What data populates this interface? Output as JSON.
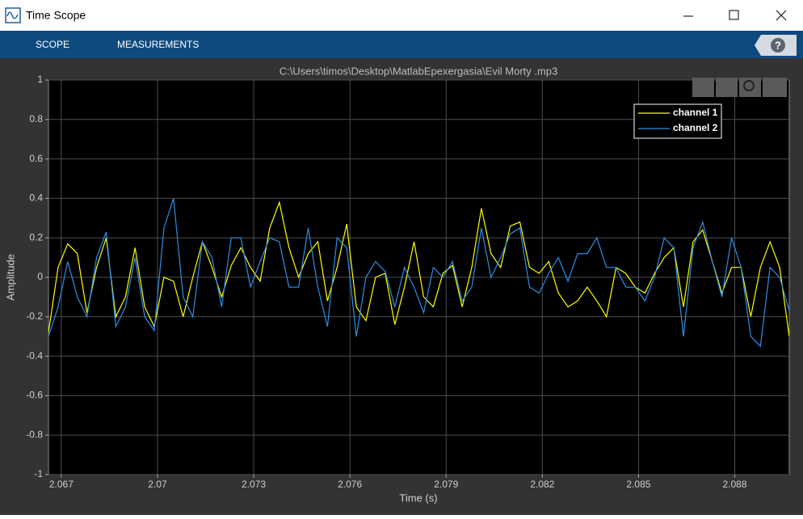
{
  "window": {
    "title": "Time Scope",
    "tabs": [
      "SCOPE",
      "MEASUREMENTS"
    ],
    "help": "?"
  },
  "chart_data": {
    "type": "line",
    "title": "C:\\Users\\timos\\Desktop\\MatlabEpexergasia\\Evil Morty .mp3",
    "xlabel": "Time (s)",
    "ylabel": "Amplitude",
    "x": [
      2.0666,
      2.0669,
      2.0672,
      2.0675,
      2.0678,
      2.0681,
      2.0684,
      2.0687,
      2.069,
      2.0693,
      2.0696,
      2.0699,
      2.0702,
      2.0705,
      2.0708,
      2.0711,
      2.0714,
      2.0717,
      2.072,
      2.0723,
      2.0726,
      2.0729,
      2.0732,
      2.0735,
      2.0738,
      2.0741,
      2.0744,
      2.0747,
      2.075,
      2.0753,
      2.0756,
      2.0759,
      2.0762,
      2.0765,
      2.0768,
      2.0771,
      2.0774,
      2.0777,
      2.078,
      2.0783,
      2.0786,
      2.0789,
      2.0792,
      2.0795,
      2.0798,
      2.0801,
      2.0804,
      2.0807,
      2.081,
      2.0813,
      2.0816,
      2.0819,
      2.0822,
      2.0825,
      2.0828,
      2.0831,
      2.0834,
      2.0837,
      2.084,
      2.0843,
      2.0846,
      2.0849,
      2.0852,
      2.0855,
      2.0858,
      2.0861,
      2.0864,
      2.0867,
      2.087,
      2.0873,
      2.0876,
      2.0879,
      2.0882,
      2.0885,
      2.0888,
      2.0891,
      2.0894,
      2.0897
    ],
    "series": [
      {
        "name": "channel 1",
        "color": "#ffff00",
        "values": [
          -0.28,
          0.05,
          0.17,
          0.12,
          -0.18,
          0.05,
          0.2,
          -0.2,
          -0.1,
          0.15,
          -0.15,
          -0.25,
          0.0,
          -0.02,
          -0.2,
          0.0,
          0.18,
          0.05,
          -0.1,
          0.06,
          0.15,
          0.05,
          -0.02,
          0.25,
          0.38,
          0.15,
          0.0,
          0.12,
          0.18,
          -0.12,
          0.05,
          0.27,
          -0.15,
          -0.22,
          0.0,
          0.02,
          -0.24,
          -0.05,
          0.18,
          -0.1,
          -0.15,
          0.02,
          0.06,
          -0.15,
          0.05,
          0.35,
          0.12,
          0.05,
          0.26,
          0.28,
          0.05,
          0.02,
          0.08,
          -0.08,
          -0.15,
          -0.12,
          -0.05,
          -0.12,
          -0.2,
          0.05,
          0.02,
          -0.05,
          -0.08,
          0.02,
          0.1,
          0.15,
          -0.15,
          0.18,
          0.24,
          0.08,
          -0.08,
          0.05,
          0.05,
          -0.2,
          0.05,
          0.18,
          0.05,
          -0.3
        ]
      },
      {
        "name": "channel 2",
        "color": "#2c8fe6",
        "values": [
          -0.3,
          -0.15,
          0.08,
          -0.1,
          -0.2,
          0.1,
          0.23,
          -0.25,
          -0.15,
          0.1,
          -0.2,
          -0.27,
          0.25,
          0.4,
          -0.1,
          -0.2,
          0.18,
          0.1,
          -0.15,
          0.2,
          0.2,
          -0.05,
          0.08,
          0.2,
          0.18,
          -0.05,
          -0.05,
          0.25,
          -0.05,
          -0.25,
          0.2,
          0.15,
          -0.3,
          0.0,
          0.08,
          0.03,
          -0.15,
          0.05,
          -0.05,
          -0.18,
          0.05,
          0.0,
          0.08,
          -0.12,
          -0.05,
          0.25,
          0.0,
          0.1,
          0.22,
          0.25,
          -0.05,
          -0.08,
          0.02,
          0.1,
          -0.02,
          0.12,
          0.12,
          0.2,
          0.05,
          0.05,
          -0.05,
          -0.05,
          -0.12,
          0.0,
          0.2,
          0.15,
          -0.3,
          0.15,
          0.28,
          0.08,
          -0.1,
          0.2,
          0.05,
          -0.3,
          -0.35,
          0.05,
          0.0,
          -0.17
        ]
      }
    ],
    "xlim": [
      2.0666,
      2.0897
    ],
    "xticks": [
      2.067,
      2.07,
      2.073,
      2.076,
      2.079,
      2.082,
      2.085,
      2.088
    ],
    "ylim": [
      -1,
      1
    ],
    "yticks": [
      -1,
      -0.8,
      -0.6,
      -0.4,
      -0.2,
      0,
      0.2,
      0.4,
      0.6,
      0.8,
      1
    ],
    "grid": true,
    "legend": "upper right"
  }
}
